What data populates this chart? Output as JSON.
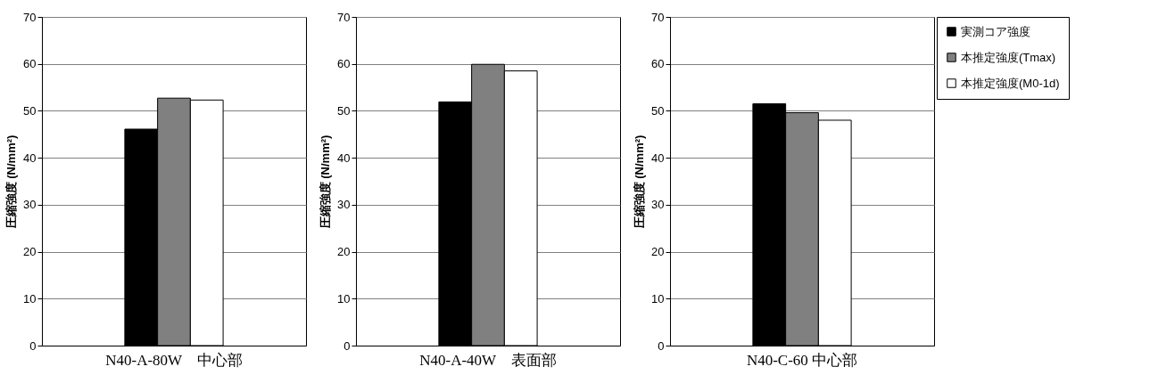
{
  "chart_data": [
    {
      "type": "bar",
      "ylabel": "圧縮強度 (N/mm²)",
      "categories": [
        "N40-A-80W　中心部"
      ],
      "ylim": [
        0,
        70
      ],
      "yticks": [
        0,
        10,
        20,
        30,
        40,
        50,
        60,
        70
      ],
      "grid": "y",
      "legend": false,
      "series": [
        {
          "color": "#000000",
          "values": [
            46.1
          ]
        },
        {
          "color": "#808080",
          "values": [
            52.7
          ]
        },
        {
          "color": "#ffffff",
          "values": [
            52.3
          ]
        }
      ]
    },
    {
      "type": "bar",
      "ylabel": "圧縮強度 (N/mm²)",
      "categories": [
        "N40-A-40W　表面部"
      ],
      "ylim": [
        0,
        70
      ],
      "yticks": [
        0,
        10,
        20,
        30,
        40,
        50,
        60,
        70
      ],
      "grid": "y",
      "legend": false,
      "series": [
        {
          "color": "#000000",
          "values": [
            51.9
          ]
        },
        {
          "color": "#808080",
          "values": [
            59.9
          ]
        },
        {
          "color": "#ffffff",
          "values": [
            58.5
          ]
        }
      ]
    },
    {
      "type": "bar",
      "ylabel": "圧縮強度 (N/mm²)",
      "categories": [
        "N40-C-60  中心部"
      ],
      "ylim": [
        0,
        70
      ],
      "yticks": [
        0,
        10,
        20,
        30,
        40,
        50,
        60,
        70
      ],
      "grid": "y",
      "legend": "right",
      "series": [
        {
          "name": "実測コア強度",
          "color": "#000000",
          "values": [
            51.5
          ]
        },
        {
          "name": "本推定強度(Tmax)",
          "color": "#808080",
          "values": [
            49.6
          ]
        },
        {
          "name": "本推定強度(M0-1d)",
          "color": "#ffffff",
          "values": [
            48.0
          ]
        }
      ]
    }
  ]
}
